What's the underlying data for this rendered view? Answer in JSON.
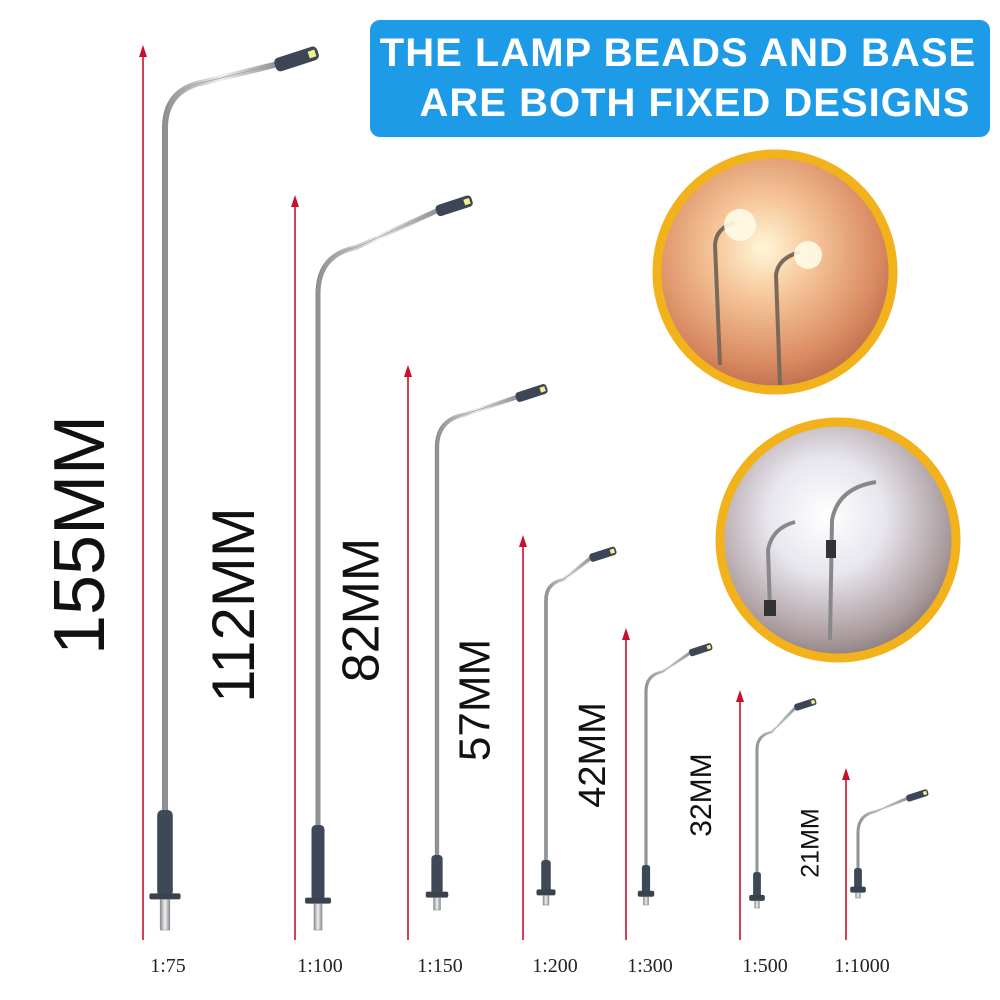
{
  "banner": {
    "lines": [
      "THE LAMP BEADS AND BASE",
      "ARE BOTH FIXED DESIGNS"
    ]
  },
  "lamps": [
    {
      "height": "155MM",
      "scale": "1:75"
    },
    {
      "height": "112MM",
      "scale": "1:100"
    },
    {
      "height": "82MM",
      "scale": "1:150"
    },
    {
      "height": "57MM",
      "scale": "1:200"
    },
    {
      "height": "42MM",
      "scale": "1:300"
    },
    {
      "height": "32MM",
      "scale": "1:500"
    },
    {
      "height": "21MM",
      "scale": "1:1000"
    }
  ]
}
